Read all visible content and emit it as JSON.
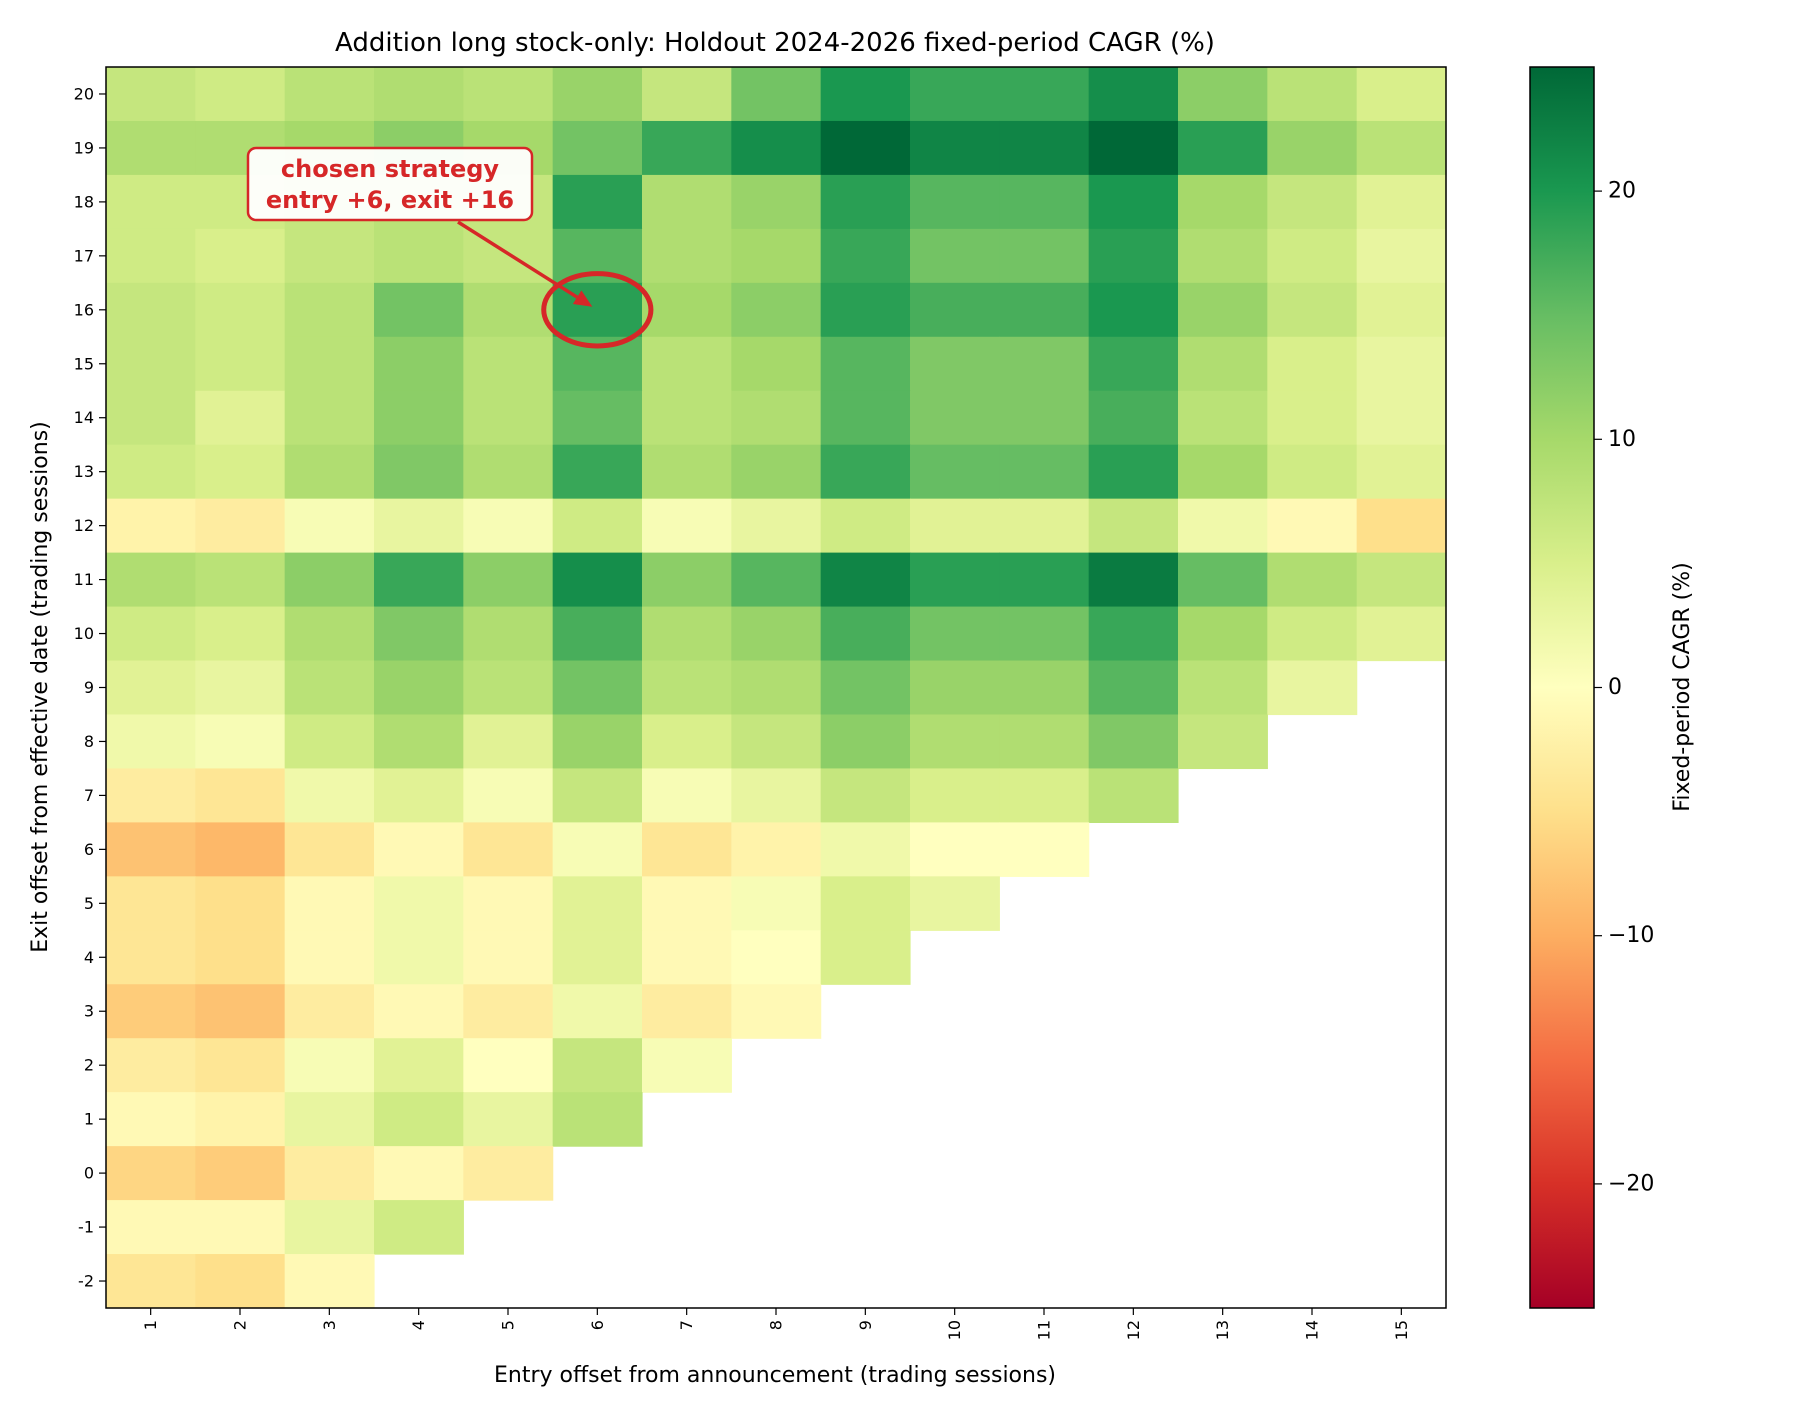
{
  "chart_data": {
    "type": "heatmap",
    "title": "Addition long stock-only: Holdout 2024-2026 fixed-period CAGR (%)",
    "xlabel": "Entry offset from announcement (trading sessions)",
    "ylabel": "Exit offset from effective date (trading sessions)",
    "x": [
      1,
      2,
      3,
      4,
      5,
      6,
      7,
      8,
      9,
      10,
      11,
      12,
      13,
      14,
      15
    ],
    "y": [
      20,
      19,
      18,
      17,
      16,
      15,
      14,
      13,
      12,
      11,
      10,
      9,
      8,
      7,
      6,
      5,
      4,
      3,
      2,
      1,
      0,
      -1,
      -2
    ],
    "y_labels": [
      "20",
      "19",
      "18",
      "17",
      "16",
      "15",
      "14",
      "13",
      "12",
      "11",
      "10",
      "9",
      "8",
      "7",
      "6",
      "5",
      "4",
      "3",
      "2",
      "1",
      "0",
      "-1",
      "-2"
    ],
    "values": [
      [
        7,
        6,
        8,
        9,
        8,
        11,
        7,
        14,
        20,
        18,
        18,
        21,
        12,
        8,
        5
      ],
      [
        9,
        9,
        10,
        12,
        10,
        14,
        18,
        21,
        25,
        22,
        22,
        25,
        19,
        11,
        8
      ],
      [
        6,
        6,
        7,
        8,
        7,
        19,
        9,
        11,
        19,
        16,
        16,
        20,
        10,
        7,
        4
      ],
      [
        6,
        5,
        7,
        8,
        7,
        16,
        9,
        10,
        18,
        14,
        14,
        19,
        9,
        6,
        3
      ],
      [
        7,
        6,
        8,
        14,
        9,
        19,
        10,
        12,
        19,
        17,
        17,
        20,
        11,
        7,
        4
      ],
      [
        7,
        6,
        8,
        12,
        8,
        16,
        8,
        10,
        16,
        13,
        13,
        18,
        9,
        5,
        3
      ],
      [
        7,
        4,
        8,
        12,
        8,
        15,
        8,
        9,
        16,
        13,
        13,
        17,
        8,
        5,
        3
      ],
      [
        6,
        5,
        9,
        13,
        9,
        18,
        9,
        11,
        18,
        15,
        15,
        19,
        10,
        6,
        4
      ],
      [
        -2,
        -3,
        1,
        3,
        1,
        6,
        1,
        3,
        6,
        4,
        4,
        7,
        2,
        -1,
        -5
      ],
      [
        9,
        8,
        12,
        18,
        12,
        21,
        12,
        16,
        22,
        19,
        19,
        23,
        15,
        9,
        7
      ],
      [
        6,
        5,
        9,
        13,
        9,
        17,
        9,
        11,
        17,
        14,
        14,
        18,
        10,
        6,
        4
      ],
      [
        4,
        3,
        8,
        11,
        8,
        14,
        8,
        9,
        14,
        11,
        11,
        16,
        8,
        3,
        null
      ],
      [
        2,
        1,
        6,
        9,
        4,
        11,
        5,
        7,
        12,
        9,
        9,
        13,
        7,
        null,
        null
      ],
      [
        -3,
        -4,
        2,
        4,
        1,
        7,
        1,
        3,
        7,
        5,
        5,
        8,
        null,
        null,
        null
      ],
      [
        -8,
        -9,
        -4,
        -1,
        -4,
        1,
        -4,
        -2,
        2,
        0,
        0,
        null,
        null,
        null,
        null
      ],
      [
        -4,
        -5,
        -1,
        2,
        -1,
        4,
        -1,
        1,
        5,
        3,
        null,
        null,
        null,
        null,
        null
      ],
      [
        -4,
        -5,
        -1,
        2,
        -1,
        4,
        -1,
        0,
        5,
        null,
        null,
        null,
        null,
        null,
        null
      ],
      [
        -7,
        -8,
        -3,
        -1,
        -3,
        2,
        -3,
        -1,
        null,
        null,
        null,
        null,
        null,
        null,
        null
      ],
      [
        -3,
        -4,
        1,
        4,
        0,
        7,
        1,
        null,
        null,
        null,
        null,
        null,
        null,
        null,
        null
      ],
      [
        -1,
        -2,
        3,
        6,
        3,
        8,
        null,
        null,
        null,
        null,
        null,
        null,
        null,
        null,
        null
      ],
      [
        -6,
        -7,
        -3,
        -1,
        -3,
        null,
        null,
        null,
        null,
        null,
        null,
        null,
        null,
        null,
        null
      ],
      [
        -1,
        -1,
        3,
        6,
        null,
        null,
        null,
        null,
        null,
        null,
        null,
        null,
        null,
        null,
        null
      ],
      [
        -4,
        -5,
        -1,
        null,
        null,
        null,
        null,
        null,
        null,
        null,
        null,
        null,
        null,
        null,
        null
      ]
    ],
    "color_scale": {
      "name": "RdYlGn",
      "range": [
        -25,
        25
      ],
      "label": "Fixed-period CAGR (%)",
      "ticks": [
        20,
        10,
        0,
        -10,
        -20
      ],
      "tick_labels": [
        "20",
        "10",
        "0",
        "−10",
        "−20"
      ]
    },
    "annotation": {
      "line1": "chosen strategy",
      "line2": "entry +6, exit +16",
      "target_x": 6,
      "target_y": 16,
      "color": "#d62728"
    }
  }
}
